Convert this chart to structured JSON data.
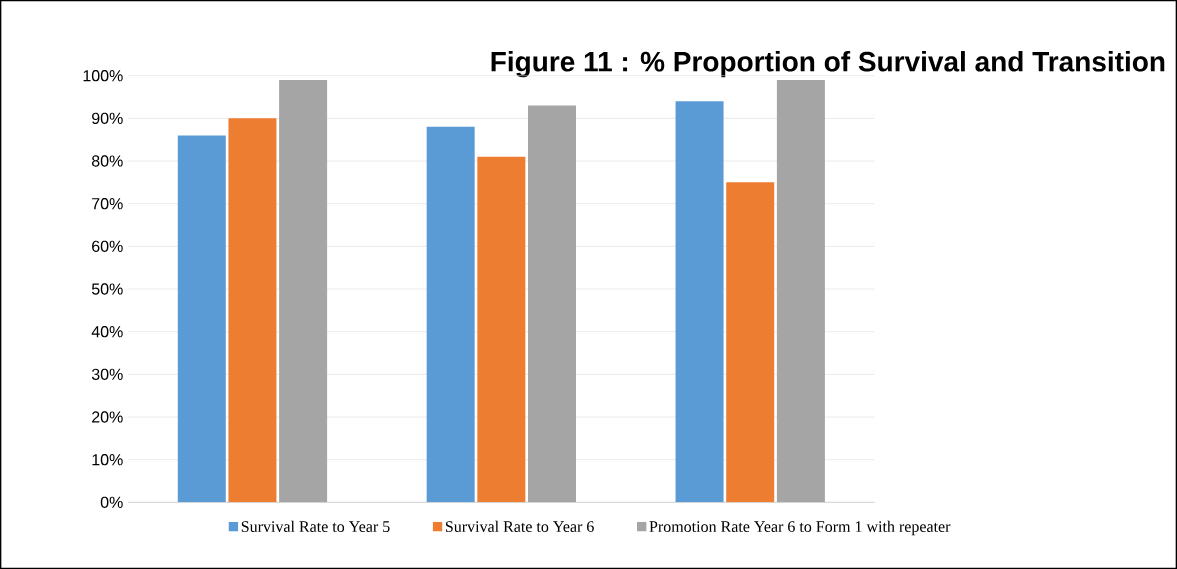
{
  "chart_data": {
    "type": "bar",
    "title": "Figure 11 : % Proportion of Survival and Transition",
    "categories": [
      null,
      null,
      null
    ],
    "series": [
      {
        "name": "Survival Rate to Year 5",
        "color": "#5b9bd5",
        "values": [
          86,
          88,
          94
        ]
      },
      {
        "name": "Survival Rate to Year 6",
        "color": "#ed7d31",
        "values": [
          90,
          81,
          75
        ]
      },
      {
        "name": "Promotion Rate Year 6 to Form 1 with repeater",
        "color": "#a5a5a5",
        "values": [
          99,
          93,
          99
        ]
      }
    ],
    "ylim": [
      0,
      100
    ],
    "yticks": [
      {
        "value": 0,
        "label": "0%"
      },
      {
        "value": 10,
        "label": "10%"
      },
      {
        "value": 20,
        "label": "20%"
      },
      {
        "value": 30,
        "label": "30%"
      },
      {
        "value": 40,
        "label": "40%"
      },
      {
        "value": 50,
        "label": "50%"
      },
      {
        "value": 60,
        "label": "60%"
      },
      {
        "value": 70,
        "label": "70%"
      },
      {
        "value": 80,
        "label": "80%"
      },
      {
        "value": 90,
        "label": "90%"
      },
      {
        "value": 100,
        "label": "100%"
      }
    ],
    "grid": "y",
    "legend": "bottom"
  }
}
